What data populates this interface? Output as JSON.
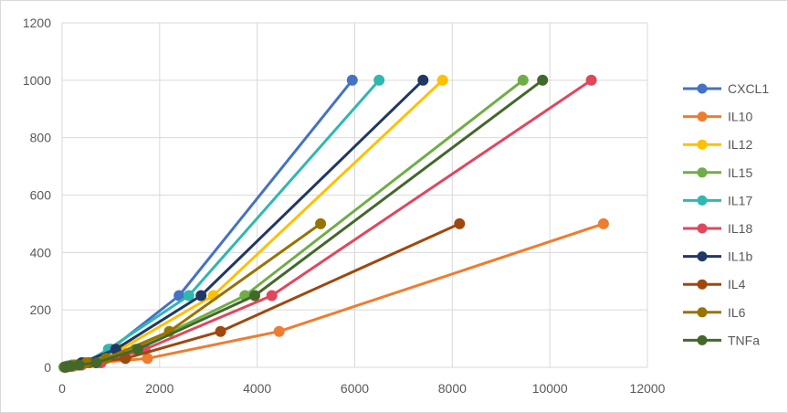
{
  "chart_data": {
    "type": "line",
    "title": "",
    "xlabel": "",
    "ylabel": "",
    "xlim": [
      0,
      12000
    ],
    "ylim": [
      0,
      1200
    ],
    "x_ticks": [
      "0",
      "2000",
      "4000",
      "6000",
      "8000",
      "10000",
      "12000"
    ],
    "y_ticks": [
      "0",
      "200",
      "400",
      "600",
      "800",
      "1000",
      "1200"
    ],
    "grid": true,
    "legend_position": "right",
    "series": [
      {
        "name": "CXCL1",
        "color": "#4472C4",
        "points": [
          [
            40,
            1
          ],
          [
            100,
            4
          ],
          [
            200,
            8
          ],
          [
            450,
            16
          ],
          [
            1000,
            63
          ],
          [
            2400,
            250
          ],
          [
            5950,
            1000
          ]
        ]
      },
      {
        "name": "IL10",
        "color": "#ED7D31",
        "points": [
          [
            80,
            1
          ],
          [
            200,
            4
          ],
          [
            350,
            8
          ],
          [
            700,
            16
          ],
          [
            1750,
            31
          ],
          [
            4450,
            125
          ],
          [
            11100,
            500
          ]
        ]
      },
      {
        "name": "IL12",
        "color": "#FFC000",
        "points": [
          [
            60,
            1
          ],
          [
            150,
            4
          ],
          [
            300,
            8
          ],
          [
            600,
            16
          ],
          [
            1200,
            63
          ],
          [
            3100,
            250
          ],
          [
            7800,
            1000
          ]
        ]
      },
      {
        "name": "IL15",
        "color": "#70AD47",
        "points": [
          [
            70,
            1
          ],
          [
            180,
            4
          ],
          [
            330,
            8
          ],
          [
            700,
            16
          ],
          [
            1500,
            63
          ],
          [
            3750,
            250
          ],
          [
            9450,
            1000
          ]
        ]
      },
      {
        "name": "IL17",
        "color": "#2EB8B0",
        "points": [
          [
            40,
            1
          ],
          [
            110,
            4
          ],
          [
            220,
            8
          ],
          [
            480,
            16
          ],
          [
            950,
            63
          ],
          [
            2600,
            250
          ],
          [
            6500,
            1000
          ]
        ]
      },
      {
        "name": "IL18",
        "color": "#E0475D",
        "points": [
          [
            90,
            1
          ],
          [
            220,
            4
          ],
          [
            400,
            8
          ],
          [
            800,
            16
          ],
          [
            1700,
            63
          ],
          [
            4300,
            250
          ],
          [
            10850,
            1000
          ]
        ]
      },
      {
        "name": "IL1b",
        "color": "#203864",
        "points": [
          [
            50,
            1
          ],
          [
            130,
            4
          ],
          [
            260,
            8
          ],
          [
            400,
            16
          ],
          [
            1100,
            63
          ],
          [
            2850,
            250
          ],
          [
            7400,
            1000
          ]
        ]
      },
      {
        "name": "IL4",
        "color": "#9E480E",
        "points": [
          [
            60,
            1
          ],
          [
            160,
            4
          ],
          [
            300,
            8
          ],
          [
            550,
            16
          ],
          [
            1300,
            31
          ],
          [
            3250,
            125
          ],
          [
            8150,
            500
          ]
        ]
      },
      {
        "name": "IL6",
        "color": "#997300",
        "points": [
          [
            50,
            1
          ],
          [
            120,
            4
          ],
          [
            250,
            8
          ],
          [
            500,
            16
          ],
          [
            900,
            31
          ],
          [
            2200,
            125
          ],
          [
            5300,
            500
          ]
        ]
      },
      {
        "name": "TNFa",
        "color": "#43682B",
        "points": [
          [
            70,
            1
          ],
          [
            170,
            4
          ],
          [
            350,
            8
          ],
          [
            700,
            16
          ],
          [
            1550,
            63
          ],
          [
            3950,
            250
          ],
          [
            9850,
            1000
          ]
        ]
      }
    ]
  }
}
